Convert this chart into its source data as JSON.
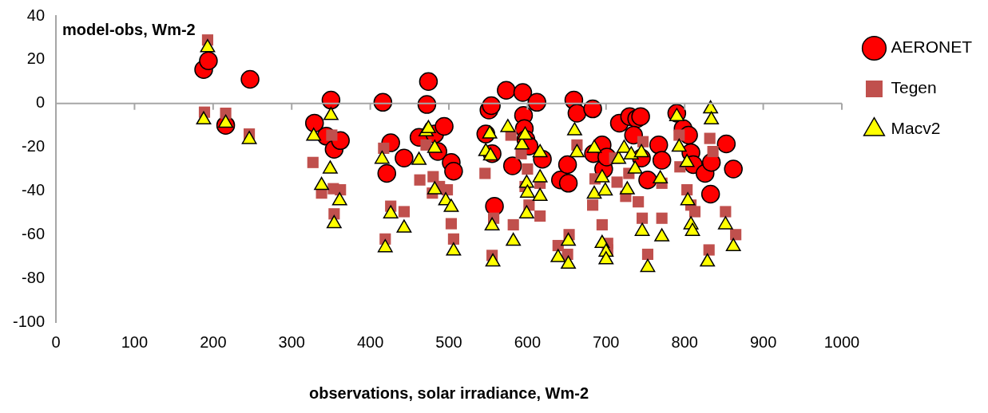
{
  "chart_data": {
    "type": "scatter",
    "xlabel": "observations, solar irradiance, Wm-2",
    "ylabel": "model-obs, Wm-2",
    "xlim": [
      0,
      1000
    ],
    "xticks": [
      0,
      100,
      200,
      300,
      400,
      500,
      600,
      700,
      800,
      900,
      1000
    ],
    "ylim": [
      -100,
      40
    ],
    "yticks": [
      -100,
      -80,
      -60,
      -40,
      -20,
      0,
      20,
      40
    ],
    "grid": false,
    "legend": "top right",
    "ref_lines": [
      {
        "axis": "y",
        "value": 0,
        "color": "#a6a6a6"
      }
    ],
    "series": [
      {
        "name": "AERONET",
        "color": "#ff0000",
        "marker": "circle",
        "x": [
          188,
          194,
          216,
          247,
          329,
          350,
          344,
          354,
          362,
          416,
          421,
          426,
          443,
          462,
          474,
          472,
          482,
          486,
          494,
          503,
          506,
          547,
          551,
          554,
          555,
          558,
          573,
          581,
          594,
          595,
          596,
          598,
          602,
          612,
          619,
          642,
          651,
          652,
          659,
          663,
          683,
          684,
          695,
          697,
          701,
          717,
          730,
          739,
          744,
          735,
          745,
          753,
          767,
          771,
          790,
          798,
          805,
          808,
          811,
          826,
          833,
          834,
          853,
          862
        ],
        "values": [
          15.5,
          19.5,
          -10,
          11,
          -9,
          1.5,
          -15,
          -21,
          -17,
          0.5,
          -32,
          -18,
          -25,
          -15.5,
          10,
          -0.5,
          -14,
          -22,
          -10.5,
          -27,
          -31,
          -14,
          -3,
          -1,
          -23,
          -47,
          6,
          -28.5,
          5,
          -5.5,
          -11.5,
          -16.5,
          -19.5,
          0.5,
          -25.5,
          -35,
          -28,
          -36.5,
          1.5,
          -4.5,
          -2.5,
          -23,
          -19,
          -30,
          -24.5,
          -9,
          -6,
          -7,
          -6,
          -14.5,
          -25,
          -35,
          -19,
          -26,
          -4.5,
          -11.5,
          -14.5,
          -22.5,
          -28,
          -32,
          -41.5,
          -27,
          -18.5,
          -30
        ]
      },
      {
        "name": "Tegen",
        "color": "#c0504d",
        "marker": "square",
        "x": [
          193,
          189,
          216,
          246,
          327,
          338,
          351,
          353,
          354,
          362,
          417,
          419,
          426,
          443,
          463,
          471,
          479,
          480,
          488,
          498,
          503,
          506,
          546,
          557,
          555,
          579,
          582,
          592,
          597,
          600,
          602,
          616,
          616,
          639,
          653,
          651,
          663,
          683,
          686,
          695,
          702,
          702,
          711,
          714,
          725,
          729,
          741,
          746,
          747,
          753,
          771,
          771,
          793,
          794,
          803,
          808,
          813,
          831,
          832,
          836,
          852,
          865
        ],
        "values": [
          29,
          -4,
          -4.5,
          -14,
          -27,
          -41,
          -14.5,
          -39,
          -50.5,
          -39.5,
          -20.5,
          -62,
          -47,
          -49.5,
          -35,
          -19,
          -41,
          -33.5,
          -38,
          -39.5,
          -55,
          -62,
          -32,
          -52.5,
          -69.5,
          -14.5,
          -55.5,
          -23,
          -38,
          -30,
          -46.5,
          -36.5,
          -51.5,
          -65,
          -60,
          -69,
          -19,
          -46.5,
          -34.5,
          -55.5,
          -64,
          -67,
          -25,
          -36,
          -42.5,
          -32,
          -45,
          -52.5,
          -17.5,
          -69,
          -52.5,
          -36.5,
          -14.5,
          -29,
          -39.5,
          -46.5,
          -49.5,
          -67,
          -16,
          -22,
          -49.5,
          -60
        ]
      },
      {
        "name": "Macv2",
        "color": "#ffff00",
        "marker": "triangle",
        "x": [
          193,
          188,
          216,
          246,
          328,
          350,
          349,
          338,
          354,
          361,
          415,
          419,
          426,
          443,
          462,
          471,
          474,
          482,
          482,
          496,
          503,
          506,
          547,
          552,
          553,
          555,
          556,
          575,
          582,
          593,
          597,
          599,
          600,
          599,
          616,
          616,
          616,
          639,
          652,
          652,
          660,
          663,
          685,
          685,
          695,
          695,
          699,
          700,
          700,
          716,
          723,
          727,
          732,
          737,
          745,
          746,
          753,
          769,
          771,
          790,
          793,
          803,
          804,
          808,
          810,
          829,
          833,
          834,
          852,
          862
        ],
        "values": [
          25.5,
          -7.5,
          -9,
          -16.5,
          -15,
          -5.5,
          -30,
          -37.5,
          -55,
          -44.5,
          -25.5,
          -66,
          -50.5,
          -57,
          -26,
          -13,
          -11.5,
          -20.5,
          -39.5,
          -44.5,
          -47.5,
          -67.5,
          -22,
          -14,
          -24,
          -56,
          -72.5,
          -11,
          -63,
          -19,
          -14.5,
          -36.5,
          -41,
          -50.5,
          -22.5,
          -34,
          -42.5,
          -70.5,
          -63,
          -73.5,
          -12.5,
          -22.5,
          -20.5,
          -41.5,
          -34,
          -64,
          -40,
          -68,
          -71.5,
          -25.5,
          -20.5,
          -39.5,
          -23.5,
          -30,
          -22.5,
          -58.5,
          -75,
          -34.5,
          -61,
          -6,
          -20,
          -27,
          -44.5,
          -55.5,
          -58.5,
          -72.5,
          -2.5,
          -7.5,
          -55.5,
          -65.5
        ]
      }
    ]
  }
}
